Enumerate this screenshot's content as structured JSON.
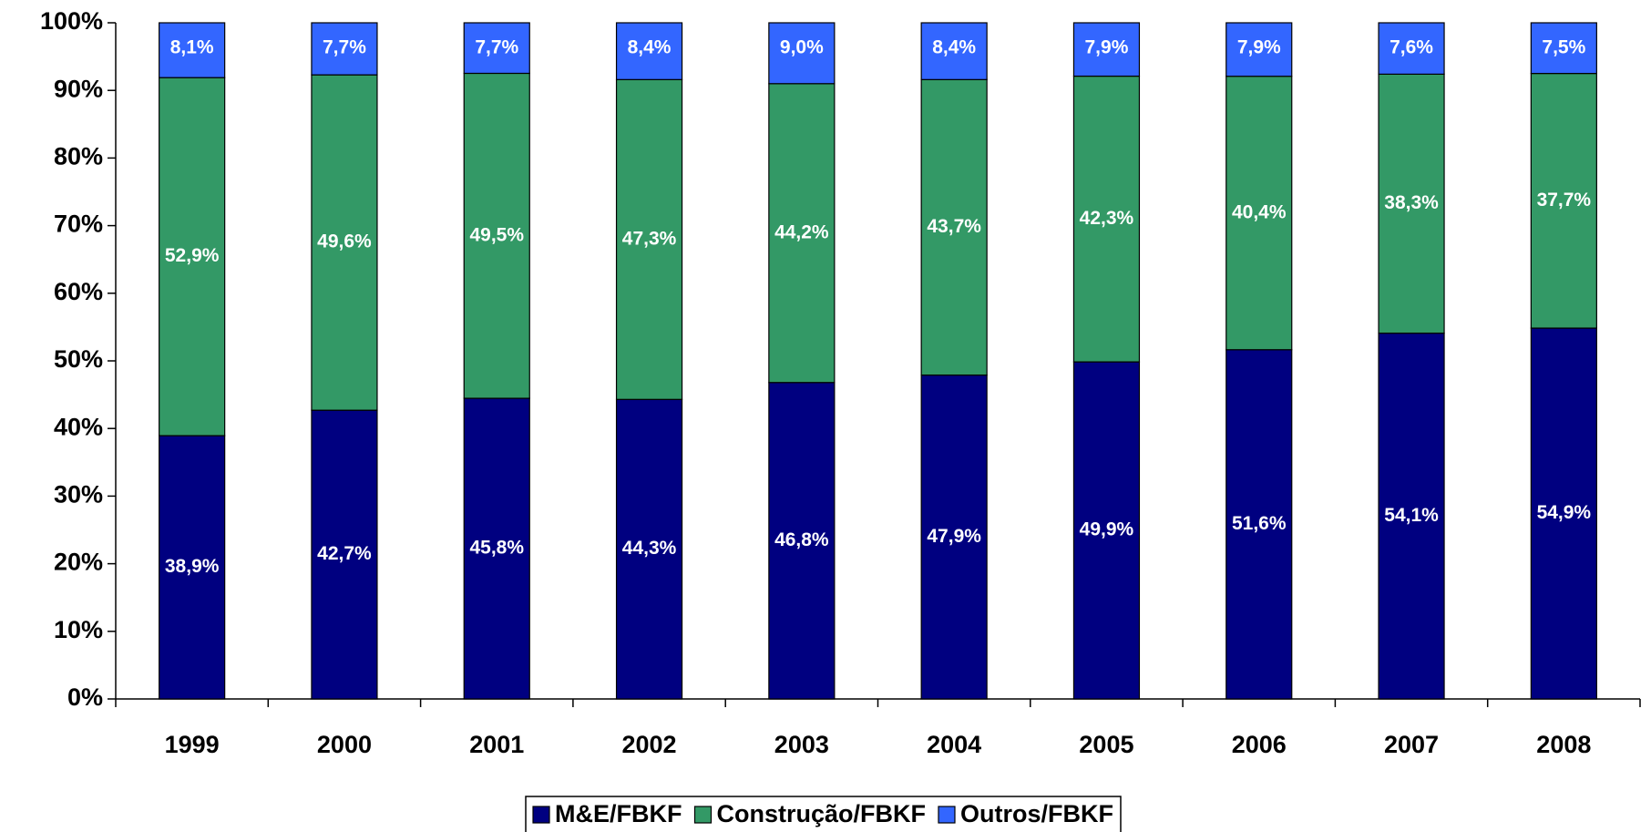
{
  "chart_data": {
    "type": "bar",
    "stacked": "percent",
    "categories": [
      "1999",
      "2000",
      "2001",
      "2002",
      "2003",
      "2004",
      "2005",
      "2006",
      "2007",
      "2008"
    ],
    "series": [
      {
        "name": "M&E/FBKF",
        "color": "#000080",
        "values": [
          38.9,
          42.7,
          45.8,
          44.3,
          46.8,
          47.9,
          49.9,
          51.6,
          54.1,
          54.9
        ],
        "value_labels": [
          "38,9%",
          "42,7%",
          "45,8%",
          "44,3%",
          "46,8%",
          "47,9%",
          "49,9%",
          "51,6%",
          "54,1%",
          "54,9%"
        ]
      },
      {
        "name": "Construção/FBKF",
        "color": "#339966",
        "values": [
          52.9,
          49.6,
          49.5,
          47.3,
          44.2,
          43.7,
          42.3,
          40.4,
          38.3,
          37.7
        ],
        "value_labels": [
          "52,9%",
          "49,6%",
          "49,5%",
          "47,3%",
          "44,2%",
          "43,7%",
          "42,3%",
          "40,4%",
          "38,3%",
          "37,7%"
        ]
      },
      {
        "name": "Outros/FBKF",
        "color": "#3366FF",
        "values": [
          8.1,
          7.7,
          7.7,
          8.4,
          9.0,
          8.4,
          7.9,
          7.9,
          7.6,
          7.5
        ],
        "value_labels": [
          "8,1%",
          "7,7%",
          "7,7%",
          "8,4%",
          "9,0%",
          "8,4%",
          "7,9%",
          "7,9%",
          "7,6%",
          "7,5%"
        ]
      }
    ],
    "ylim": [
      0,
      100
    ],
    "yticks": [
      {
        "value": 0,
        "label": "0%"
      },
      {
        "value": 10,
        "label": "10%"
      },
      {
        "value": 20,
        "label": "20%"
      },
      {
        "value": 30,
        "label": "30%"
      },
      {
        "value": 40,
        "label": "40%"
      },
      {
        "value": 50,
        "label": "50%"
      },
      {
        "value": 60,
        "label": "60%"
      },
      {
        "value": 70,
        "label": "70%"
      },
      {
        "value": 80,
        "label": "80%"
      },
      {
        "value": 90,
        "label": "90%"
      },
      {
        "value": 100,
        "label": "100%"
      }
    ],
    "legend": "bottom"
  }
}
